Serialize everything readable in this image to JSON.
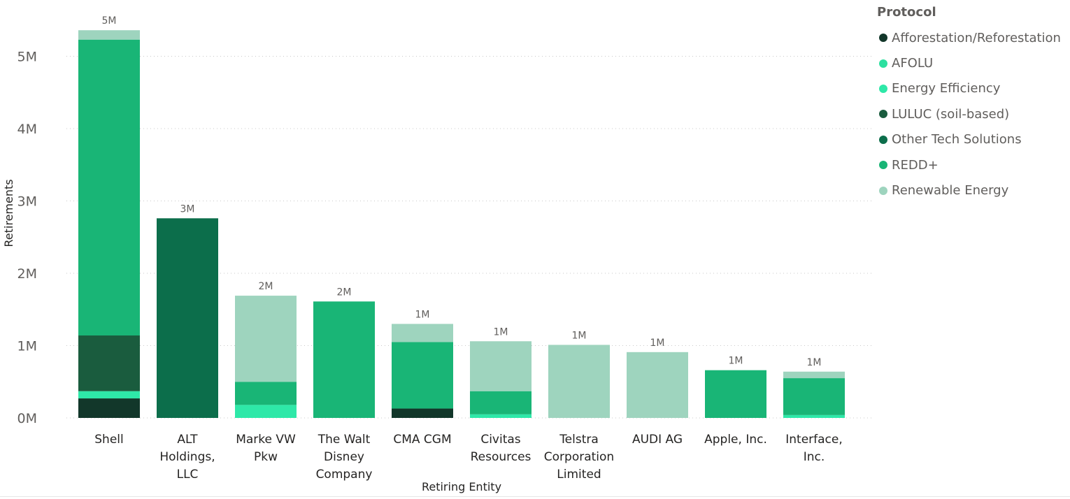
{
  "chart_data": {
    "type": "bar",
    "stacked": true,
    "ylabel": "Retirements",
    "xlabel": "Retiring Entity",
    "ylim": [
      0,
      5400000
    ],
    "yticks": [
      0,
      1000000,
      2000000,
      3000000,
      4000000,
      5000000
    ],
    "ytick_labels": [
      "0M",
      "1M",
      "2M",
      "3M",
      "4M",
      "5M"
    ],
    "grid": true,
    "legend_title": "Protocol",
    "legend_position": "right",
    "categories": [
      [
        "Shell"
      ],
      [
        "ALT",
        "Holdings,",
        "LLC"
      ],
      [
        "Marke VW",
        "Pkw"
      ],
      [
        "The Walt",
        "Disney",
        "Company"
      ],
      [
        "CMA CGM"
      ],
      [
        "Civitas",
        "Resources"
      ],
      [
        "Telstra",
        "Corporation",
        "Limited"
      ],
      [
        "AUDI AG"
      ],
      [
        "Apple, Inc."
      ],
      [
        "Interface,",
        "Inc."
      ]
    ],
    "total_labels": [
      "5M",
      "3M",
      "2M",
      "2M",
      "1M",
      "1M",
      "1M",
      "1M",
      "1M",
      "1M"
    ],
    "series": [
      {
        "name": "Afforestation/Reforestation",
        "color": "#12372A",
        "values": [
          270000,
          0,
          0,
          0,
          130000,
          0,
          0,
          0,
          0,
          0
        ]
      },
      {
        "name": "AFOLU",
        "color": "#2DE0A0",
        "values": [
          0,
          0,
          0,
          0,
          0,
          0,
          0,
          0,
          0,
          0
        ]
      },
      {
        "name": "Energy Efficiency",
        "color": "#2EE8A8",
        "values": [
          100000,
          0,
          180000,
          0,
          0,
          50000,
          0,
          0,
          0,
          40000
        ]
      },
      {
        "name": "LULUC (soil-based)",
        "color": "#1A5C3E",
        "values": [
          770000,
          0,
          0,
          0,
          0,
          0,
          0,
          0,
          0,
          0
        ]
      },
      {
        "name": "Other Tech Solutions",
        "color": "#0C6E4B",
        "values": [
          0,
          2760000,
          0,
          0,
          0,
          0,
          0,
          0,
          0,
          0
        ]
      },
      {
        "name": "REDD+",
        "color": "#19B576",
        "values": [
          4090000,
          0,
          320000,
          1610000,
          920000,
          320000,
          0,
          0,
          660000,
          510000
        ]
      },
      {
        "name": "Renewable Energy",
        "color": "#9ED4BE",
        "values": [
          130000,
          0,
          1190000,
          0,
          250000,
          690000,
          1010000,
          910000,
          0,
          90000
        ]
      }
    ]
  }
}
